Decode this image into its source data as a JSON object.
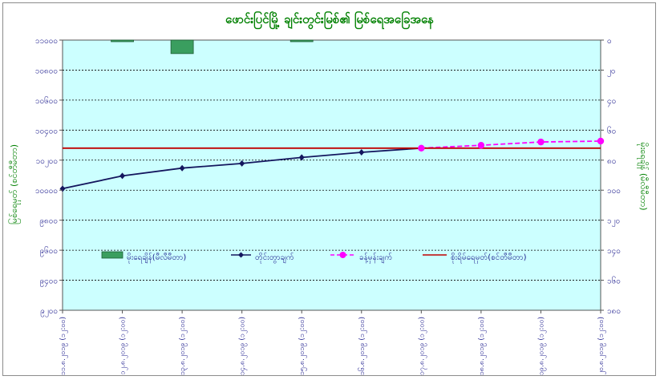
{
  "chart_data": {
    "type": "bar+line",
    "title": "ဖောင်းပြင်မြို့ ချင်းတွင်းမြစ်၏ မြစ်ရေအခြေအနေ",
    "ylabel_left": "မြစ်ရေမှတ် (စင်တီမီတာ)",
    "ylabel_right": "မိုးရေချိန် (မီလီမီတာ)",
    "ylim_left": [
      9200,
      11000
    ],
    "yticks_left": [
      {
        "v": 11000,
        "label": "၁၁၀၀၀"
      },
      {
        "v": 10800,
        "label": "၁၀၈၀၀"
      },
      {
        "v": 10600,
        "label": "၁၀၆၀၀"
      },
      {
        "v": 10400,
        "label": "၁၀၄၀၀"
      },
      {
        "v": 10200,
        "label": "၁၀၂၀၀"
      },
      {
        "v": 10000,
        "label": "၁၀၀၀၀"
      },
      {
        "v": 9800,
        "label": "၉၈၀၀"
      },
      {
        "v": 9600,
        "label": "၉၆၀၀"
      },
      {
        "v": 9400,
        "label": "၉၄၀၀"
      },
      {
        "v": 9200,
        "label": "၉၂၀၀"
      }
    ],
    "ylim_right": [
      0,
      180
    ],
    "yticks_right": [
      {
        "v": 0,
        "label": "၀"
      },
      {
        "v": 20,
        "label": "၂၀"
      },
      {
        "v": 40,
        "label": "၄၀"
      },
      {
        "v": 60,
        "label": "၆၀"
      },
      {
        "v": 80,
        "label": "၈၀"
      },
      {
        "v": 100,
        "label": "၁၀၀"
      },
      {
        "v": 120,
        "label": "၁၂၀"
      },
      {
        "v": 140,
        "label": "၁၄၀"
      },
      {
        "v": 160,
        "label": "၁၆၀"
      },
      {
        "v": 180,
        "label": "၁၈၀"
      }
    ],
    "categories": [
      "၁၁.၈.၂၀၁၉ (၁၂:၀၀)",
      "၁၂.၈.၂၀၁၉ (၁၂:၀၀)",
      "၁၃.၈.၂၀၁၉ (၁၂:၀၀)",
      "၁၄.၈.၂၀၁၉ (၁၂:၀၀)",
      "၁၅.၈.၂၀၁၉ (၁၂:၀၀)",
      "၁၆.၈.၂၀၁၉ (၁၂:၀၀)",
      "၁၇.၈.၂၀၁၉ (၁၂:၀၀)",
      "၁၈.၈.၂၀၁၉ (၁၂:၀၀)",
      "၁၉.၈.၂၀၁၉ (၁၂:၀၀)",
      "၂၀.၈.၂၀၁၉ (၁၂:၀၀)"
    ],
    "series": [
      {
        "name": "မိုးရေချိန်(မီလီမီတာ)",
        "kind": "bar",
        "axis": "right",
        "color": "#3a9e5f",
        "values": [
          null,
          1,
          9,
          null,
          1,
          null,
          null,
          null,
          null,
          null
        ]
      },
      {
        "name": "တိုင်းတွာချက်",
        "kind": "line",
        "axis": "left",
        "color": "#14165e",
        "values": [
          10010,
          10095,
          10147,
          10178,
          10218,
          10252,
          10280,
          null,
          null,
          null
        ]
      },
      {
        "name": "ခန့်မှန်းချက်",
        "kind": "dashed-line",
        "axis": "left",
        "color": "#ff00ff",
        "values": [
          null,
          null,
          null,
          null,
          null,
          null,
          10280,
          10299,
          10321,
          10327
        ]
      },
      {
        "name": "စိုးရိမ်ရေမှတ်(စင်တီမီတာ)",
        "kind": "hline",
        "axis": "left",
        "color": "#c00000",
        "value": 10280
      }
    ]
  }
}
